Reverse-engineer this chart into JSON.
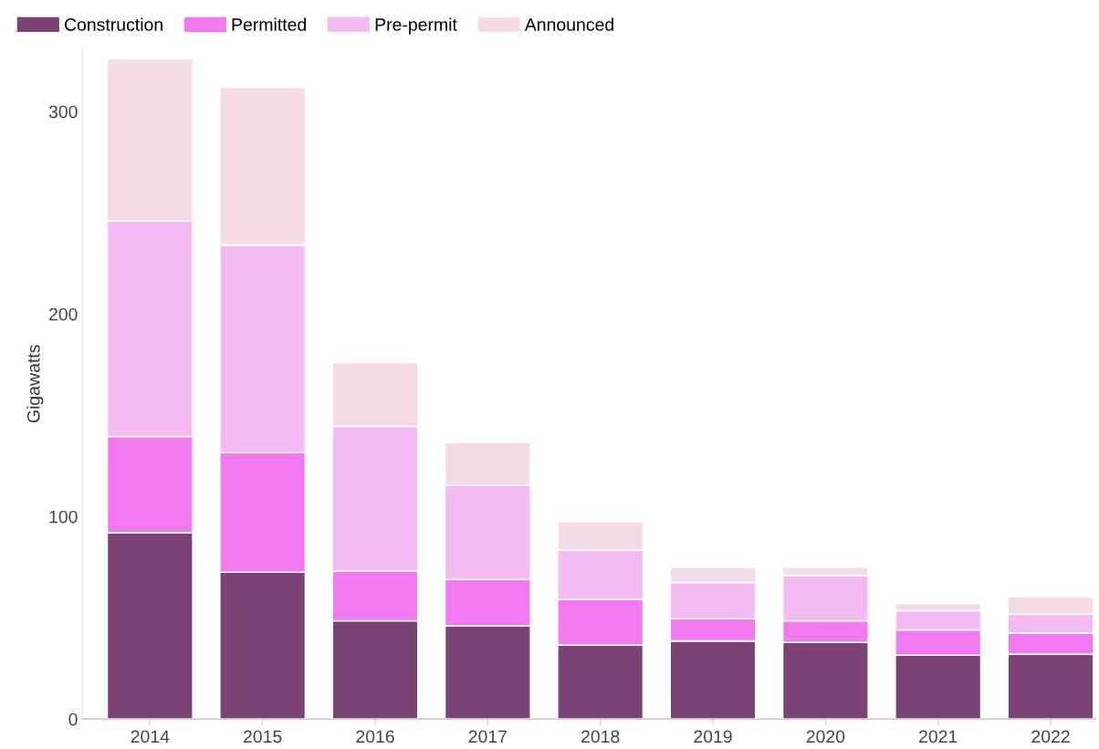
{
  "chart_data": {
    "type": "bar",
    "stacked": true,
    "ylabel": "Gigawatts",
    "categories": [
      "2014",
      "2015",
      "2016",
      "2017",
      "2018",
      "2019",
      "2020",
      "2021",
      "2022"
    ],
    "series": [
      {
        "name": "Construction",
        "color": "#7b4276",
        "values": [
          92,
          72.5,
          48.5,
          46,
          36.5,
          38.5,
          38,
          31.5,
          32
        ]
      },
      {
        "name": "Permitted",
        "color": "#f279ef",
        "values": [
          47.5,
          59,
          24.5,
          23,
          22.5,
          11,
          10.5,
          12.5,
          10.5
        ]
      },
      {
        "name": "Pre-permit",
        "color": "#f4bbf2",
        "values": [
          106.5,
          102.5,
          71.5,
          46.5,
          24.5,
          18,
          22.5,
          9.5,
          9.5
        ]
      },
      {
        "name": "Announced",
        "color": "#f5dbe6",
        "values": [
          80,
          78,
          31.5,
          21,
          14,
          7.5,
          4,
          3.5,
          8.5
        ]
      }
    ],
    "ylim": [
      0,
      331
    ],
    "yticks": [
      0,
      100,
      200,
      300
    ],
    "grid": false,
    "legend": "top left"
  }
}
